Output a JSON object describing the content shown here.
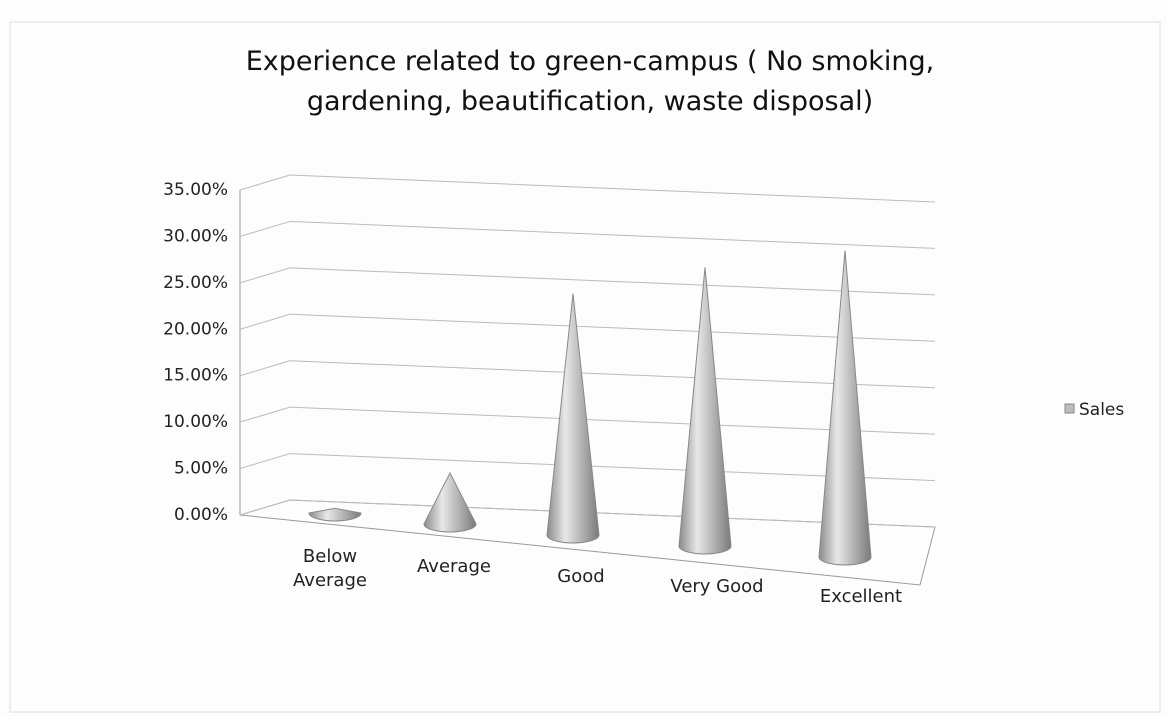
{
  "chart_data": {
    "type": "cone",
    "title": "Experience related to green-campus ( No smoking, gardening, beautification, waste disposal)",
    "categories": [
      "Below Average",
      "Average",
      "Good",
      "Very Good",
      "Excellent"
    ],
    "series": [
      {
        "name": "Sales",
        "color": "#bdbdbd",
        "values": [
          0.5,
          5.5,
          26,
          30,
          33
        ]
      }
    ],
    "ylim": [
      0,
      35
    ],
    "yticks": [
      {
        "value": 0,
        "label": "0.00%"
      },
      {
        "value": 5,
        "label": "5.00%"
      },
      {
        "value": 10,
        "label": "10.00%"
      },
      {
        "value": 15,
        "label": "15.00%"
      },
      {
        "value": 20,
        "label": "20.00%"
      },
      {
        "value": 25,
        "label": "25.00%"
      },
      {
        "value": 30,
        "label": "30.00%"
      },
      {
        "value": 35,
        "label": "35.00%"
      }
    ],
    "grid": true,
    "legend": "right"
  }
}
